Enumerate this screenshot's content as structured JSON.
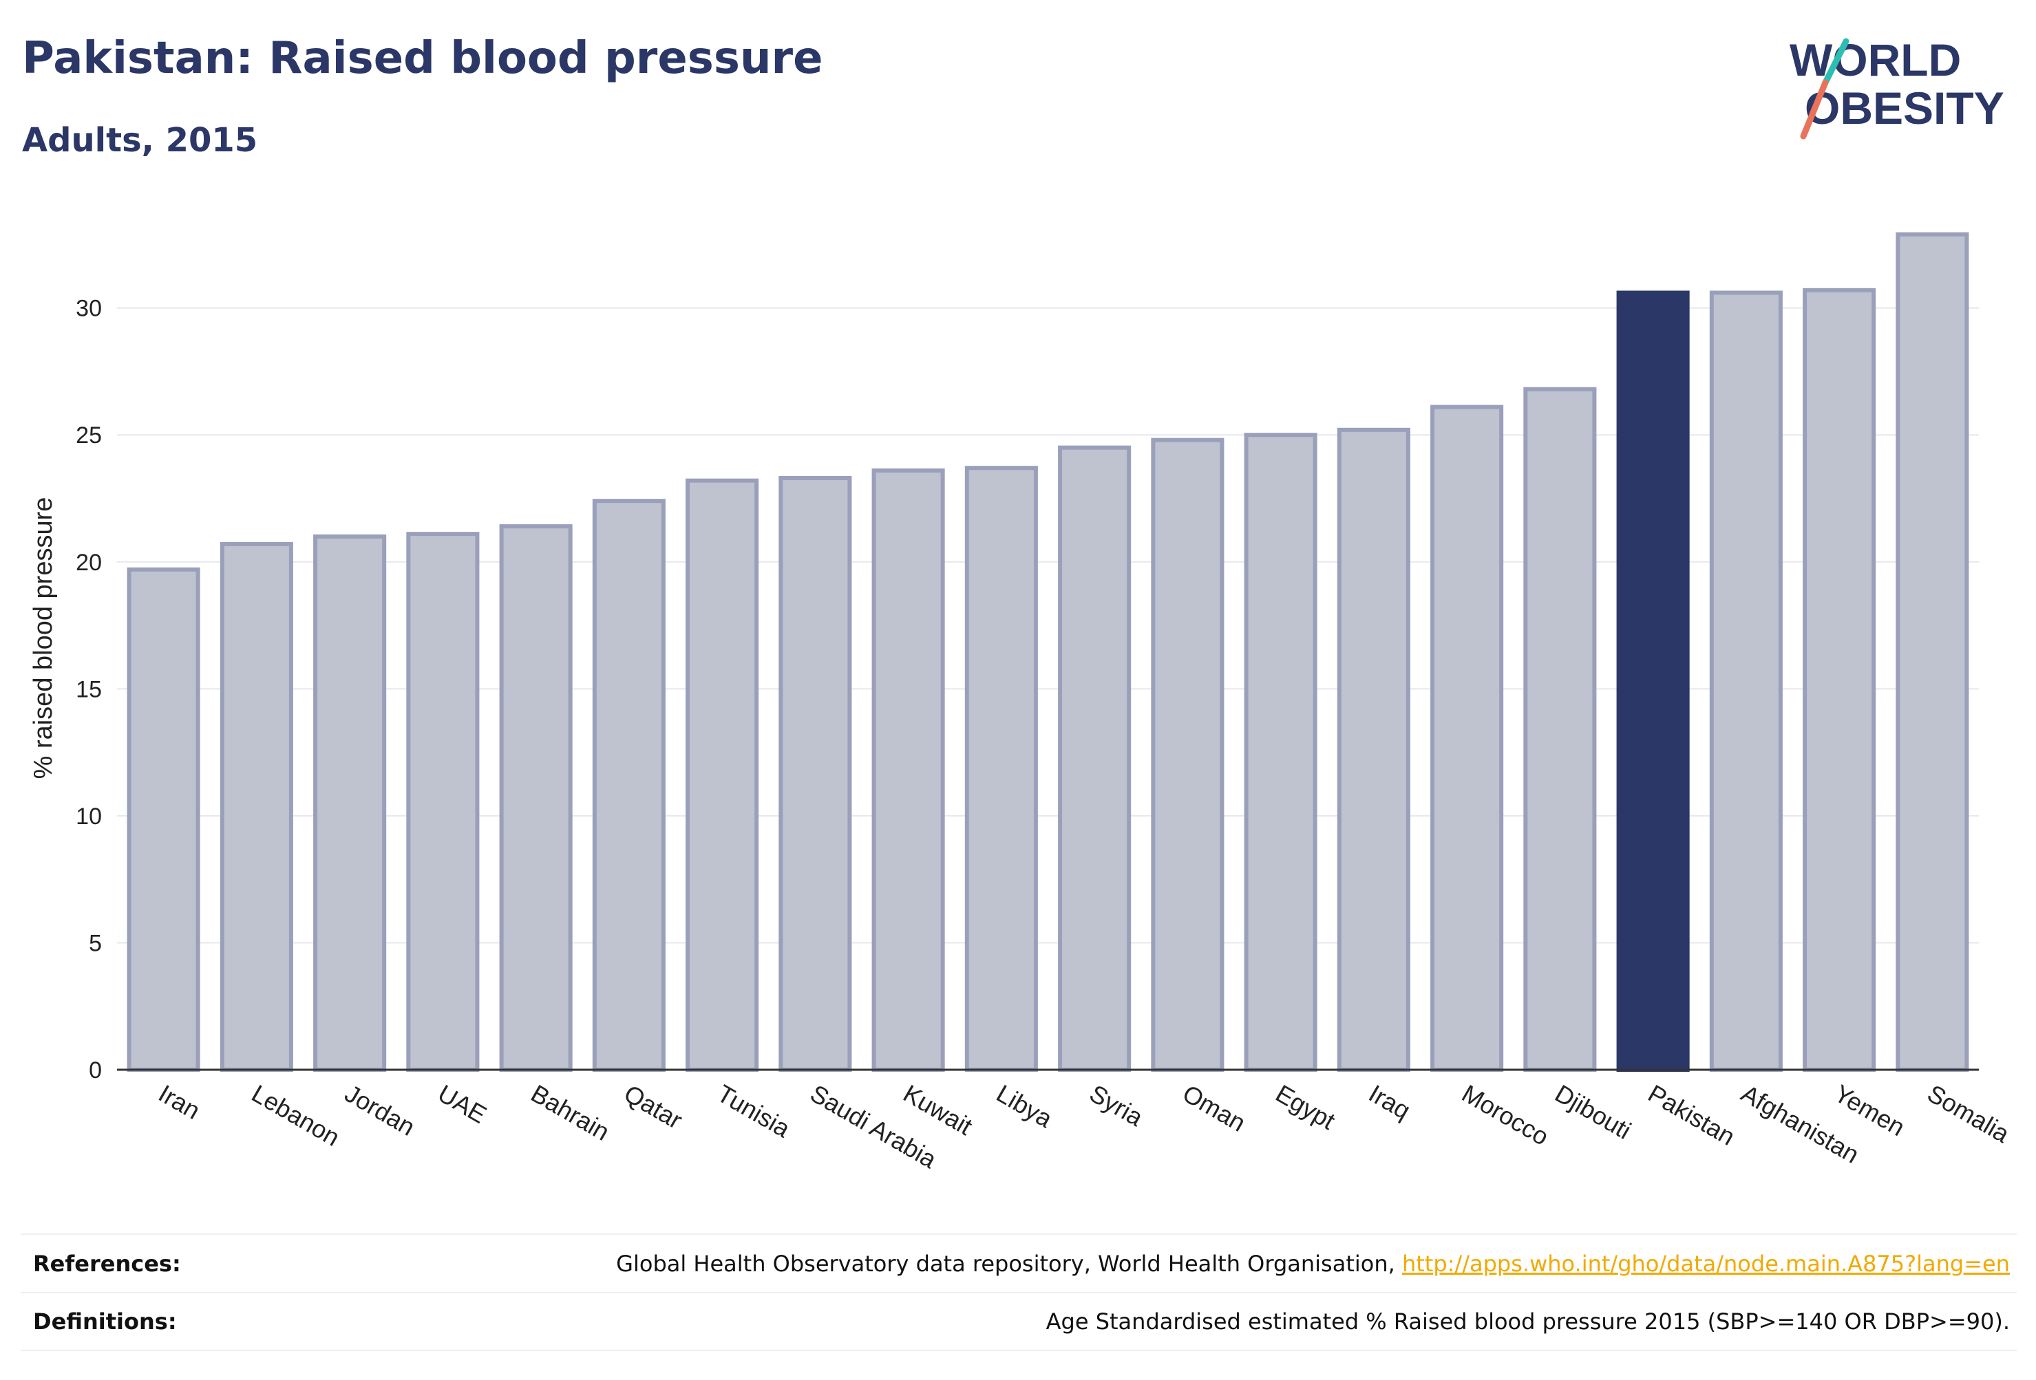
{
  "header": {
    "title": "Pakistan: Raised blood pressure",
    "subtitle": "Adults, 2015"
  },
  "logo": {
    "line1": "WORLD",
    "line2": "OBESITY",
    "colors": {
      "text": "#2b3766",
      "slash_top": "#2bbfb3",
      "slash_bottom": "#e8735a"
    }
  },
  "footer": {
    "references_label": "References:",
    "references_text": "Global Health Observatory data repository, World Health Organisation, ",
    "references_link": "http://apps.who.int/gho/data/node.main.A875?lang=en",
    "definitions_label": "Definitions:",
    "definitions_text": "Age Standardised estimated % Raised blood pressure 2015 (SBP>=140 OR DBP>=90)."
  },
  "chart_data": {
    "type": "bar",
    "title": "Pakistan: Raised blood pressure",
    "subtitle": "Adults, 2015",
    "xlabel": "",
    "ylabel": "% raised blood pressure",
    "ylim": [
      0,
      34
    ],
    "yticks": [
      0,
      5,
      10,
      15,
      20,
      25,
      30
    ],
    "grid": true,
    "highlight": "Pakistan",
    "colors": {
      "bar": "#bfc2cf",
      "bar_edge": "#9aa0ba",
      "highlight": "#2b3766",
      "grid": "#e6e8ef",
      "axis": "#333333"
    },
    "categories": [
      "Iran",
      "Lebanon",
      "Jordan",
      "UAE",
      "Bahrain",
      "Qatar",
      "Tunisia",
      "Saudi Arabia",
      "Kuwait",
      "Libya",
      "Syria",
      "Oman",
      "Egypt",
      "Iraq",
      "Morocco",
      "Djibouti",
      "Pakistan",
      "Afghanistan",
      "Yemen",
      "Somalia"
    ],
    "values": [
      19.7,
      20.7,
      21.0,
      21.1,
      21.4,
      22.4,
      23.2,
      23.3,
      23.6,
      23.7,
      24.5,
      24.8,
      25.0,
      25.2,
      26.1,
      26.8,
      30.6,
      30.6,
      30.7,
      32.9
    ]
  }
}
